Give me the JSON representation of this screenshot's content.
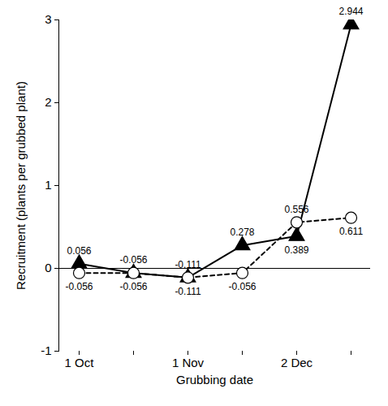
{
  "chart_data": {
    "type": "line",
    "x_label": "Grubbing date",
    "y_label": "Recruitment (plants per grubbed plant)",
    "categories": [
      "1 Oct",
      null,
      "1 Nov",
      null,
      "2 Dec",
      null
    ],
    "series": [
      {
        "color": "#000000",
        "marker": "triangle",
        "line_style": "solid",
        "values": [
          0.056,
          -0.056,
          -0.111,
          0.278,
          0.389,
          2.944
        ]
      },
      {
        "color": "#000000",
        "marker": "circle",
        "line_style": "dashed",
        "values": [
          -0.056,
          -0.056,
          -0.111,
          -0.056,
          0.556,
          0.611
        ]
      }
    ],
    "ylim": [
      -1,
      3
    ],
    "yticks": [
      -1,
      0,
      1,
      2,
      3
    ],
    "data_labels": true,
    "grid": false
  }
}
